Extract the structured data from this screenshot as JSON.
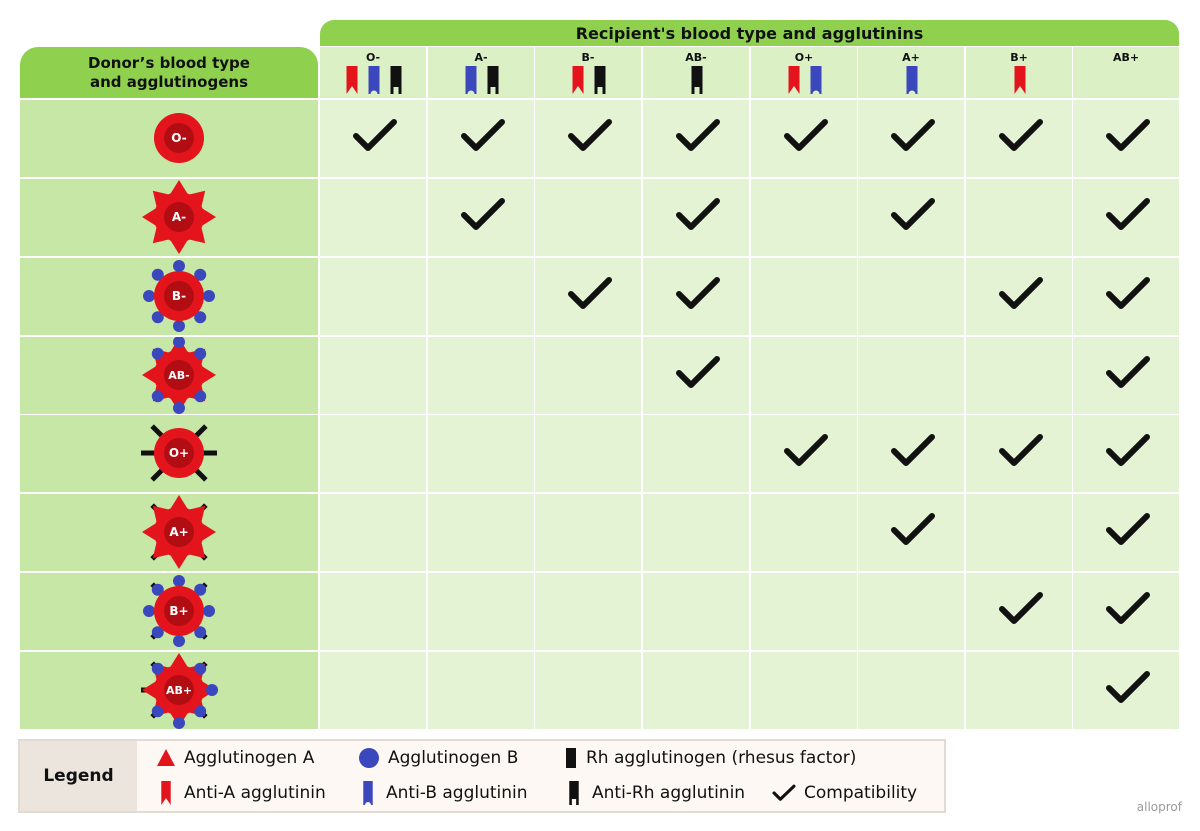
{
  "header": {
    "recipient_title": "Recipient's blood type and agglutinins",
    "donor_title_line1": "Donor’s blood type",
    "donor_title_line2": "and agglutinogens"
  },
  "recipients": [
    {
      "label": "O-",
      "agglutinins": [
        "anti-A",
        "anti-B",
        "anti-Rh"
      ]
    },
    {
      "label": "A-",
      "agglutinins": [
        "anti-B",
        "anti-Rh"
      ]
    },
    {
      "label": "B-",
      "agglutinins": [
        "anti-A",
        "anti-Rh"
      ]
    },
    {
      "label": "AB-",
      "agglutinins": [
        "anti-Rh"
      ]
    },
    {
      "label": "O+",
      "agglutinins": [
        "anti-A",
        "anti-B"
      ]
    },
    {
      "label": "A+",
      "agglutinins": [
        "anti-B"
      ]
    },
    {
      "label": "B+",
      "agglutinins": [
        "anti-A"
      ]
    },
    {
      "label": "AB+",
      "agglutinins": []
    }
  ],
  "donors": [
    {
      "label": "O-",
      "antigens": []
    },
    {
      "label": "A-",
      "antigens": [
        "A"
      ]
    },
    {
      "label": "B-",
      "antigens": [
        "B"
      ]
    },
    {
      "label": "AB-",
      "antigens": [
        "A",
        "B"
      ]
    },
    {
      "label": "O+",
      "antigens": [
        "Rh"
      ]
    },
    {
      "label": "A+",
      "antigens": [
        "A",
        "Rh"
      ]
    },
    {
      "label": "B+",
      "antigens": [
        "B",
        "Rh"
      ]
    },
    {
      "label": "AB+",
      "antigens": [
        "A",
        "B",
        "Rh"
      ]
    }
  ],
  "compatibility": [
    [
      1,
      1,
      1,
      1,
      1,
      1,
      1,
      1
    ],
    [
      0,
      1,
      0,
      1,
      0,
      1,
      0,
      1
    ],
    [
      0,
      0,
      1,
      1,
      0,
      0,
      1,
      1
    ],
    [
      0,
      0,
      0,
      1,
      0,
      0,
      0,
      1
    ],
    [
      0,
      0,
      0,
      0,
      1,
      1,
      1,
      1
    ],
    [
      0,
      0,
      0,
      0,
      0,
      1,
      0,
      1
    ],
    [
      0,
      0,
      0,
      0,
      0,
      0,
      1,
      1
    ],
    [
      0,
      0,
      0,
      0,
      0,
      0,
      0,
      1
    ]
  ],
  "legend": {
    "title": "Legend",
    "agglutinogen_a": "Agglutinogen A",
    "agglutinogen_b": "Agglutinogen B",
    "rh_agglutinogen": "Rh agglutinogen (rhesus factor)",
    "anti_a": "Anti-A agglutinin",
    "anti_b": "Anti-B agglutinin",
    "anti_rh": "Anti-Rh agglutinin",
    "compatibility": "Compatibility"
  },
  "colors": {
    "header_green": "#8fd14f",
    "donor_cell": "#c6e7a5",
    "grid_cell": "#e3f3d3",
    "cell_red": "#e4141c",
    "cell_dark_red": "#b30d14",
    "antigen_b_blue": "#3b47bd",
    "rh_black": "#111111"
  },
  "watermark": "alloprof"
}
